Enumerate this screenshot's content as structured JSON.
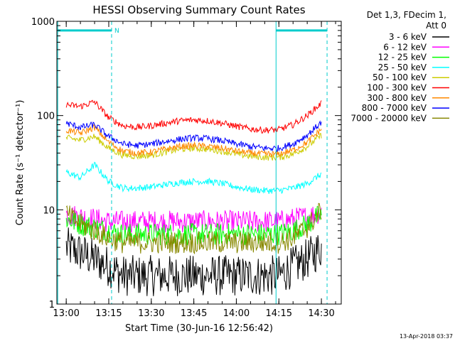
{
  "chart_data": {
    "type": "line",
    "title": "HESSI Observing Summary Count Rates",
    "xlabel": "Start Time (30-Jun-16 12:56:42)",
    "ylabel": "Count Rate (s⁻¹ detector⁻¹)",
    "yscale": "log",
    "ylim": [
      1,
      1000
    ],
    "xlim": [
      "12:56:42",
      "14:37:00"
    ],
    "x_ticks": [
      "13:00",
      "13:15",
      "13:30",
      "13:45",
      "14:00",
      "14:15",
      "14:30"
    ],
    "y_ticks": [
      "1",
      "10",
      "100",
      "1000"
    ],
    "legend_title": [
      "Det 1,3, FDecim 1,",
      "Att 0"
    ],
    "legend_position": "right",
    "footer": "13-Apr-2018 03:37",
    "annotations": [
      {
        "text": "N",
        "x": "13:17"
      }
    ],
    "markers": {
      "vertical_solid": [
        "12:57",
        "14:14"
      ],
      "vertical_dashed": [
        "13:16",
        "14:32"
      ],
      "bars_at_y": 800,
      "bars": [
        [
          "12:57",
          "13:16"
        ],
        [
          "14:14",
          "14:32"
        ]
      ]
    },
    "x": [
      "13:00",
      "13:05",
      "13:10",
      "13:15",
      "13:20",
      "13:25",
      "13:30",
      "13:35",
      "13:40",
      "13:45",
      "13:50",
      "13:55",
      "14:00",
      "14:05",
      "14:10",
      "14:15",
      "14:20",
      "14:25",
      "14:30"
    ],
    "series": [
      {
        "name": "3 - 6 keV",
        "color": "#000000",
        "values": [
          4,
          3.5,
          3,
          2.5,
          2,
          2,
          2,
          2,
          2,
          2,
          2,
          2,
          2,
          2,
          2,
          2,
          2.5,
          3,
          4
        ]
      },
      {
        "name": "6 - 12 keV",
        "color": "#ff00ff",
        "values": [
          9,
          8.5,
          8,
          7.5,
          7.5,
          7.5,
          7.5,
          7.5,
          7.5,
          7.5,
          7.5,
          7.5,
          7.5,
          7.5,
          7.5,
          7.5,
          8,
          8.5,
          9.5
        ]
      },
      {
        "name": "12 - 25 keV",
        "color": "#00ff00",
        "values": [
          8,
          7,
          6.5,
          6,
          5.5,
          5.5,
          5.5,
          5.5,
          5.5,
          5.5,
          5.5,
          5.5,
          5.5,
          5.5,
          5.5,
          5.5,
          6,
          7,
          9
        ]
      },
      {
        "name": "25 - 50 keV",
        "color": "#00ffff",
        "values": [
          25,
          22,
          30,
          20,
          17,
          17,
          17.5,
          18.5,
          19.5,
          20,
          20,
          19,
          17.5,
          16.5,
          16,
          16,
          17,
          19,
          24
        ]
      },
      {
        "name": "50 - 100 keV",
        "color": "#cccc00",
        "values": [
          58,
          55,
          60,
          45,
          38,
          37,
          38,
          41,
          44,
          45,
          44,
          42,
          39,
          37,
          36,
          36,
          39,
          47,
          62
        ]
      },
      {
        "name": "100 - 300 keV",
        "color": "#ff0000",
        "values": [
          130,
          125,
          140,
          95,
          78,
          75,
          78,
          83,
          88,
          90,
          88,
          83,
          77,
          72,
          70,
          71,
          80,
          100,
          135
        ]
      },
      {
        "name": "300 - 800 keV",
        "color": "#ff8800",
        "values": [
          70,
          65,
          75,
          52,
          42,
          40,
          41,
          44,
          47,
          48,
          47,
          45,
          42,
          40,
          39,
          39,
          43,
          52,
          72
        ]
      },
      {
        "name": "800 - 7000 keV",
        "color": "#0000ff",
        "values": [
          83,
          75,
          80,
          60,
          50,
          48,
          50,
          53,
          56,
          58,
          57,
          54,
          50,
          47,
          45,
          45,
          50,
          62,
          85
        ]
      },
      {
        "name": "7000 - 20000 keV",
        "color": "#888800",
        "values": [
          9,
          7,
          6,
          5,
          4.5,
          4.5,
          4.5,
          4.5,
          4.5,
          4.5,
          4.5,
          4.5,
          4.5,
          4.5,
          4.5,
          4.5,
          5,
          6.5,
          10
        ]
      }
    ]
  }
}
